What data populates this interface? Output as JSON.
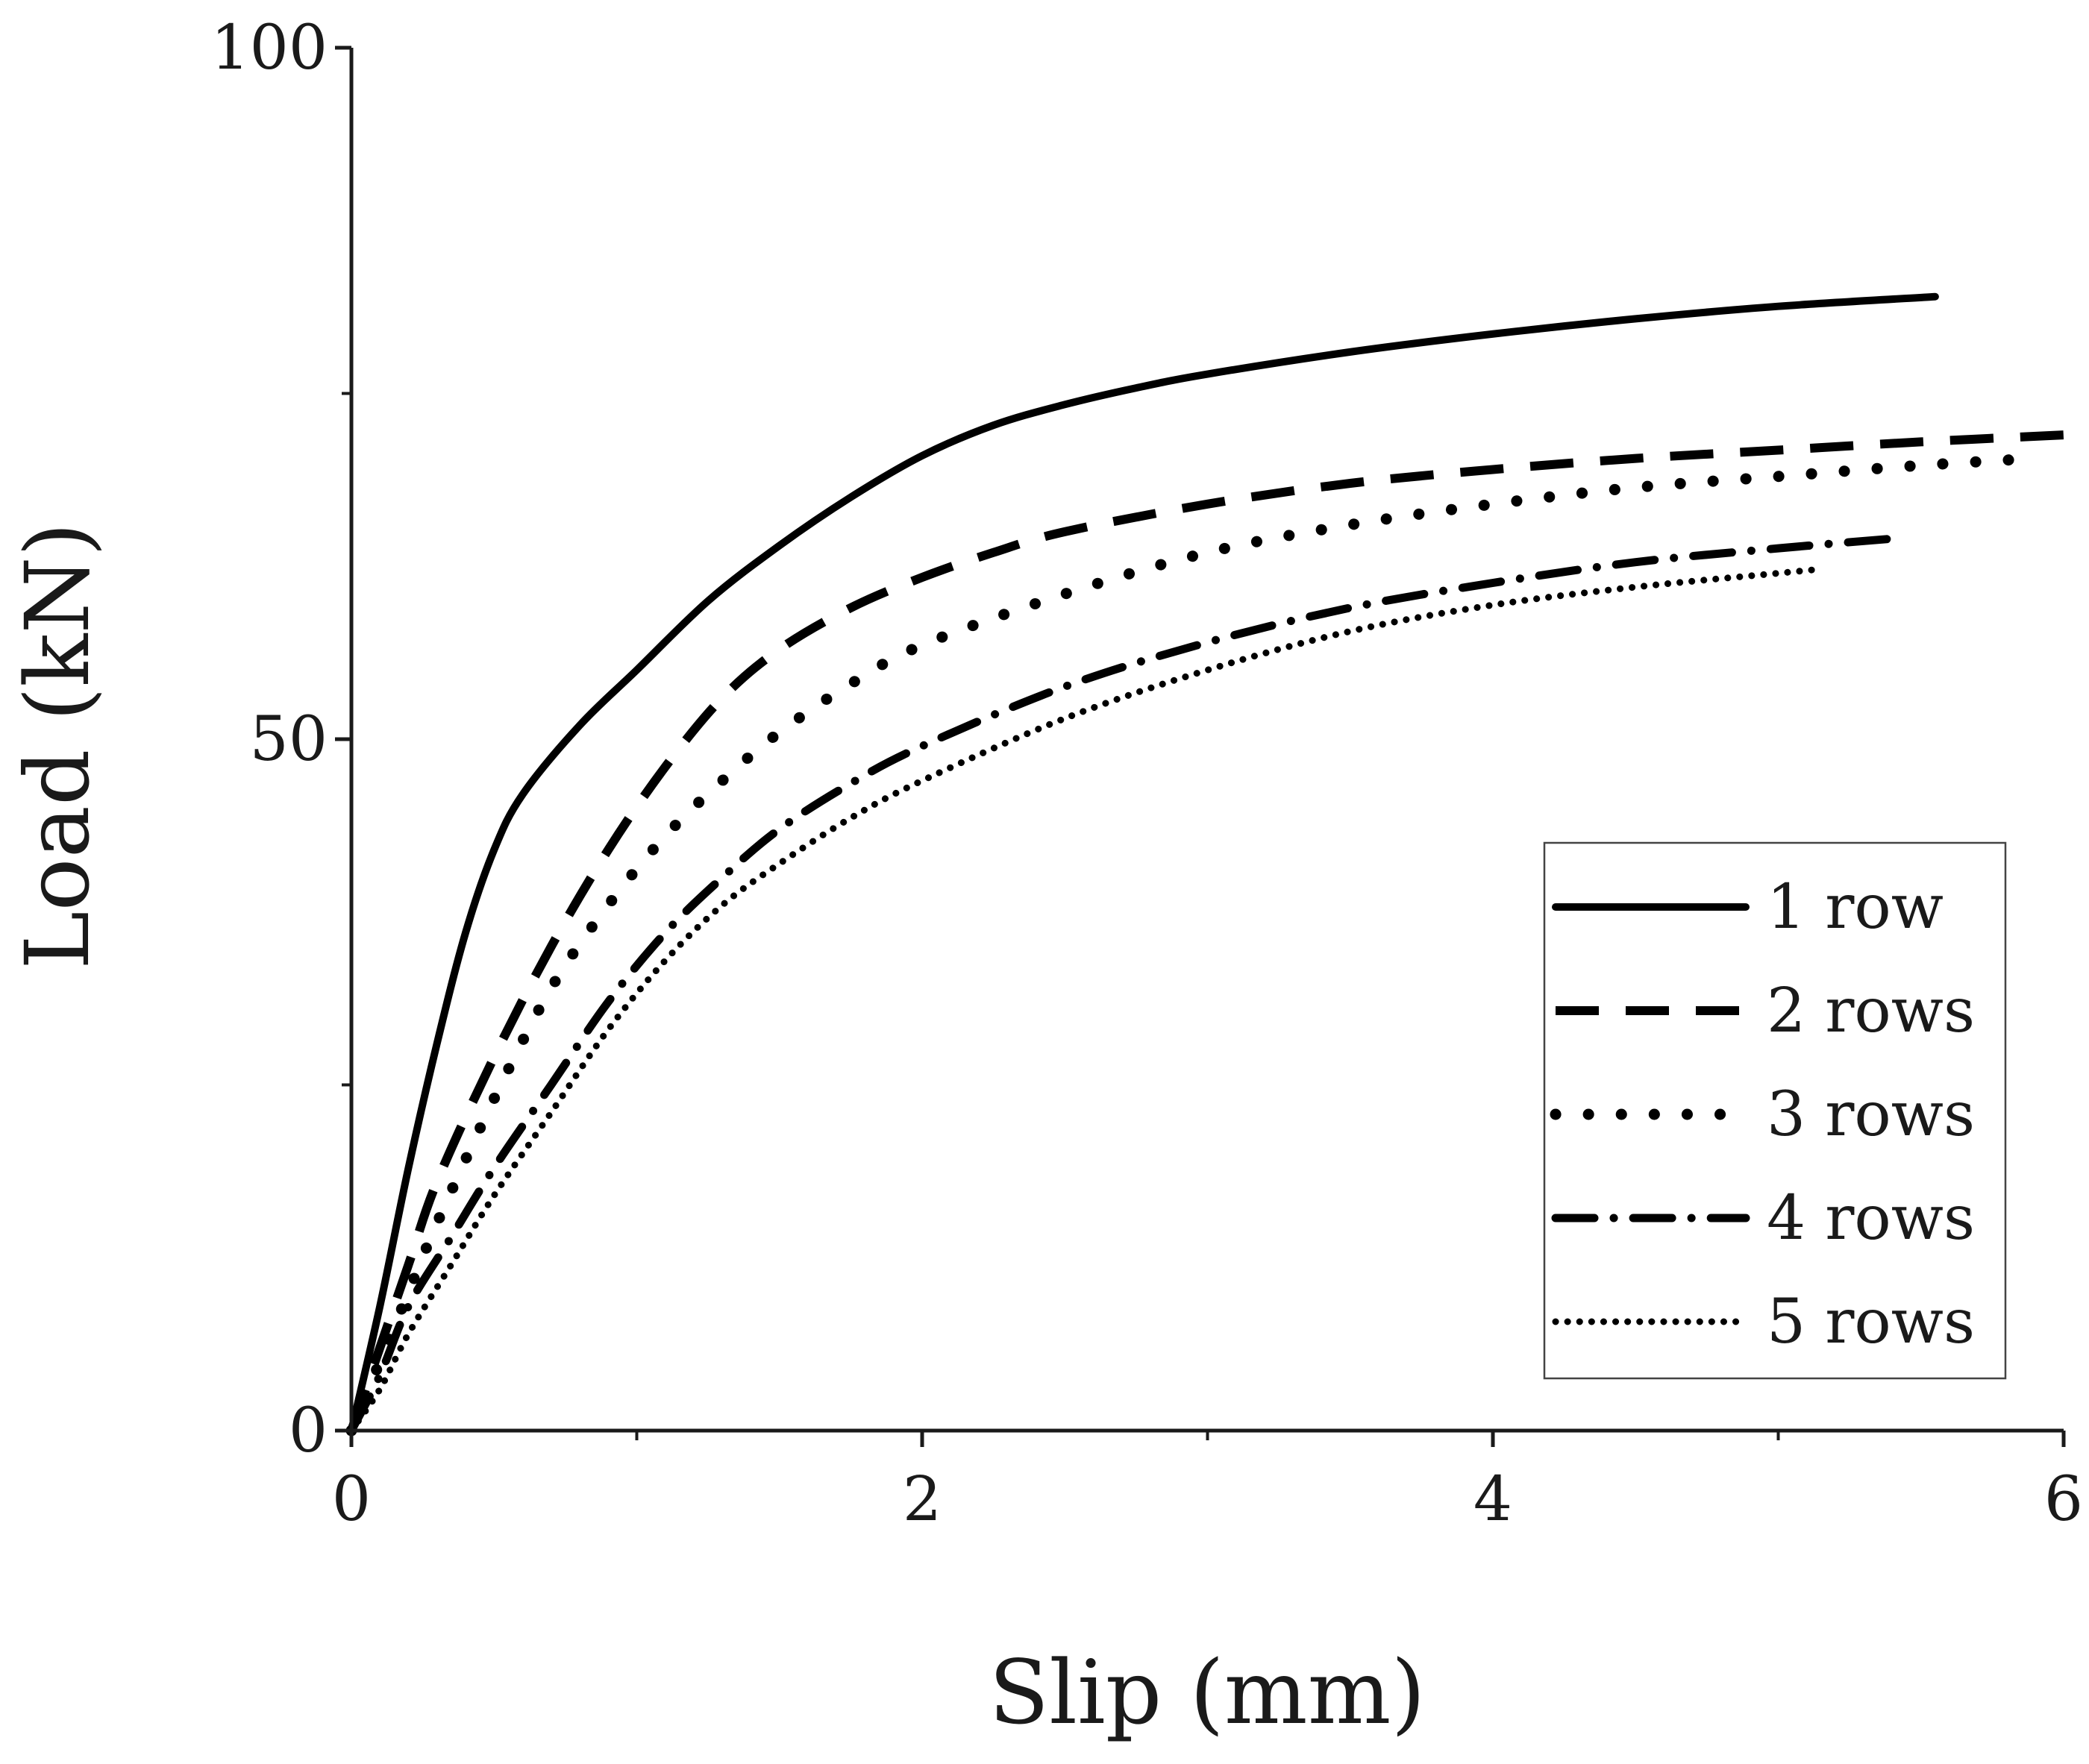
{
  "chart_data": {
    "type": "line",
    "title": "",
    "xlabel": "Slip (mm)",
    "ylabel": "Load (kN)",
    "xlim": [
      0,
      6
    ],
    "ylim": [
      0,
      100
    ],
    "x_ticks": [
      0,
      2,
      4,
      6
    ],
    "x_tick_labels": [
      "0",
      "2",
      "4",
      "6"
    ],
    "x_minor_ticks": [
      1,
      3,
      5
    ],
    "y_ticks": [
      0,
      50,
      100
    ],
    "y_tick_labels": [
      "0",
      "50",
      "100"
    ],
    "y_minor_ticks": [
      25,
      75
    ],
    "grid": false,
    "legend_position": "bottom-right",
    "series": [
      {
        "name": "1 row",
        "style": "solid",
        "x": [
          0,
          0.1,
          0.2,
          0.3,
          0.4,
          0.5,
          0.6,
          0.8,
          1.0,
          1.25,
          1.5,
          1.75,
          2.0,
          2.25,
          2.5,
          2.75,
          3.0,
          3.5,
          4.0,
          4.5,
          5.0,
          5.55
        ],
        "y": [
          0,
          9,
          19,
          28,
          36,
          42,
          46,
          51,
          55,
          60,
          64,
          67.5,
          70.5,
          72.7,
          74.2,
          75.4,
          76.4,
          78.0,
          79.3,
          80.4,
          81.3,
          82.0
        ]
      },
      {
        "name": "2 rows",
        "style": "dashed",
        "x": [
          0,
          0.1,
          0.2,
          0.3,
          0.5,
          0.7,
          0.9,
          1.1,
          1.3,
          1.5,
          1.75,
          2.0,
          2.25,
          2.5,
          3.0,
          3.5,
          4.0,
          4.5,
          5.0,
          5.5,
          6.0
        ],
        "y": [
          0,
          6,
          12,
          18,
          27,
          35,
          42,
          48,
          53,
          56.5,
          59.5,
          61.7,
          63.5,
          65.0,
          67.0,
          68.5,
          69.5,
          70.3,
          70.9,
          71.5,
          72.0
        ]
      },
      {
        "name": "3 rows",
        "style": "dotted-dense",
        "x": [
          0,
          0.1,
          0.2,
          0.3,
          0.5,
          0.7,
          0.9,
          1.1,
          1.3,
          1.5,
          1.75,
          2.0,
          2.5,
          3.0,
          3.5,
          4.0,
          4.5,
          5.0,
          5.5,
          5.9
        ],
        "y": [
          0,
          5,
          10,
          15,
          24,
          32,
          38,
          43,
          47,
          50.5,
          54,
          56.8,
          60.5,
          63.5,
          65.5,
          67.0,
          68.2,
          69.0,
          69.8,
          70.3
        ]
      },
      {
        "name": "4 rows",
        "style": "dash-dot",
        "x": [
          0,
          0.1,
          0.2,
          0.35,
          0.5,
          0.7,
          0.9,
          1.1,
          1.3,
          1.5,
          1.75,
          2.0,
          2.5,
          3.0,
          3.5,
          4.0,
          4.5,
          5.0,
          5.4
        ],
        "y": [
          0,
          4,
          9,
          14,
          19,
          25,
          31,
          36,
          40,
          43.5,
          46.8,
          49.5,
          53.8,
          57.0,
          59.5,
          61.3,
          62.8,
          63.8,
          64.5
        ]
      },
      {
        "name": "5 rows",
        "style": "dotted",
        "x": [
          0,
          0.1,
          0.2,
          0.35,
          0.5,
          0.7,
          0.9,
          1.1,
          1.3,
          1.5,
          1.75,
          2.0,
          2.5,
          3.0,
          3.5,
          4.0,
          4.5,
          5.0,
          5.15
        ],
        "y": [
          0,
          3,
          7,
          12,
          17,
          23,
          29,
          34,
          38,
          41,
          44.3,
          47.0,
          51.5,
          55.0,
          57.8,
          59.7,
          61.0,
          62.0,
          62.3
        ]
      }
    ]
  }
}
